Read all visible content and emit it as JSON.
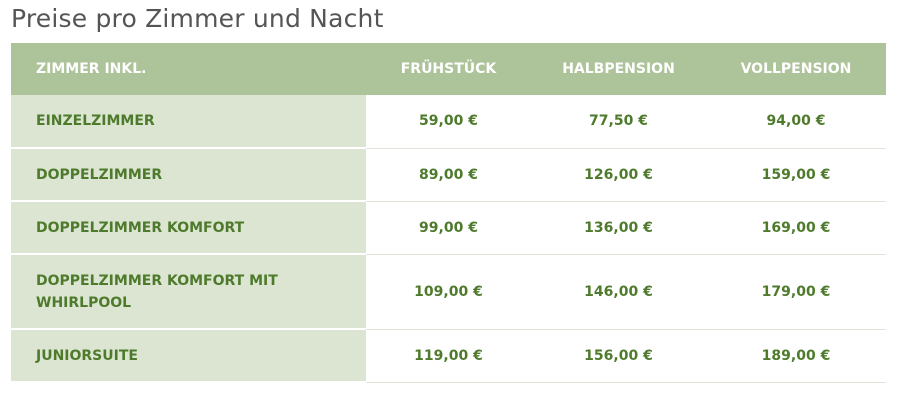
{
  "title": "Preise pro Zimmer und Nacht",
  "headers": [
    "ZIMMER INKL.",
    "FRÜHSTÜCK",
    "HALBPENSION",
    "VOLLPENSION"
  ],
  "rows": [
    [
      "EINZELZIMMER",
      "59,00 €",
      "77,50 €",
      "94,00 €"
    ],
    [
      "DOPPELZIMMER",
      "89,00 €",
      "126,00 €",
      "159,00 €"
    ],
    [
      "DOPPELZIMMER KOMFORT",
      "99,00 €",
      "136,00 €",
      "169,00 €"
    ],
    [
      "DOPPELZIMMER KOMFORT MIT WHIRLPOOL",
      "109,00 €",
      "146,00 €",
      "179,00 €"
    ],
    [
      "JUNIORSUITE",
      "119,00 €",
      "156,00 €",
      "189,00 €"
    ]
  ],
  "colors": {
    "header_bg": "#adc39a",
    "first_col_bg": "#dce5d2",
    "text_green": "#4e7a2c"
  }
}
